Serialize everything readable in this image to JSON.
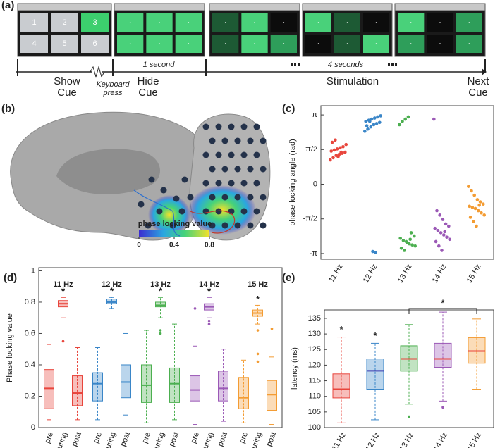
{
  "panel_a": {
    "label": "(a)",
    "screen_numbers": [
      "1",
      "2",
      "3",
      "4",
      "5",
      "6"
    ],
    "durations": [
      "1 second",
      "4 seconds"
    ],
    "phases": [
      "Show Cue",
      "Keyboard press",
      "Hide Cue",
      "Stimulation",
      "Next Cue"
    ]
  },
  "panel_b": {
    "label": "(b)",
    "colorbar": {
      "title": "phase locking value",
      "ticks": [
        0,
        0.4,
        0.8
      ]
    }
  },
  "chart_data": [
    {
      "type": "strip",
      "label": "(c)",
      "y_label": "phase locking angle (rad)",
      "categories": [
        "11 Hz",
        "12 Hz",
        "13 Hz",
        "14 Hz",
        "15 Hz"
      ],
      "colors": [
        "#e8453c",
        "#3a86c8",
        "#4caf50",
        "#9b59b6",
        "#f39c33"
      ],
      "values": [
        [
          1.1,
          1.2,
          1.3,
          1.35,
          1.4,
          1.45,
          1.5,
          1.55,
          1.6,
          1.65,
          1.7,
          1.8,
          1.9,
          2.0,
          1.25,
          1.45
        ],
        [
          2.4,
          2.5,
          2.6,
          2.7,
          2.75,
          2.8,
          2.85,
          2.9,
          2.95,
          3.0,
          3.05,
          3.1,
          2.65,
          2.85,
          -3.05,
          -3.1
        ],
        [
          2.7,
          2.85,
          2.95,
          3.05,
          -2.2,
          -2.35,
          -2.45,
          -2.55,
          -2.6,
          -2.7,
          -2.75,
          -2.8,
          -2.9,
          -3.0,
          -2.65,
          -2.5
        ],
        [
          2.95,
          -1.2,
          -1.4,
          -1.6,
          -1.8,
          -1.9,
          -2.0,
          -2.1,
          -2.2,
          -2.3,
          -2.4,
          -2.5,
          -2.6,
          -2.8,
          -3.0,
          -2.15
        ],
        [
          -0.1,
          -0.3,
          -0.5,
          -0.7,
          -0.8,
          -0.9,
          -1.0,
          -1.05,
          -1.1,
          -1.2,
          -1.3,
          -1.4,
          -1.5,
          -1.7,
          -1.9,
          -0.95
        ]
      ],
      "ylim": [
        -3.4,
        3.56
      ],
      "yticks": [
        {
          "value": 3.14159,
          "label": "π"
        },
        {
          "value": 1.5708,
          "label": "π/2"
        },
        0,
        {
          "value": -1.5708,
          "label": "-π/2"
        },
        {
          "value": -3.14159,
          "label": "-π"
        }
      ]
    },
    {
      "type": "grouped-box",
      "label": "(d)",
      "y_label": "Phase locking value",
      "categories": [
        "pre",
        "during",
        "post"
      ],
      "ylim": [
        0,
        1.02
      ],
      "yticks": [
        0,
        0.2,
        0.4,
        0.6,
        0.8,
        1
      ],
      "series": [
        {
          "name": "11 Hz",
          "color": "#e8453c",
          "star": "*",
          "boxes": [
            {
              "min": 0.05,
              "q1": 0.12,
              "median": 0.25,
              "q3": 0.37,
              "max": 0.53,
              "outliers": []
            },
            {
              "min": 0.7,
              "q1": 0.77,
              "median": 0.79,
              "q3": 0.81,
              "max": 0.83,
              "outliers": [
                0.55
              ]
            },
            {
              "min": 0.05,
              "q1": 0.14,
              "median": 0.22,
              "q3": 0.33,
              "max": 0.51,
              "outliers": []
            }
          ]
        },
        {
          "name": "12 Hz",
          "color": "#3a86c8",
          "star": "*",
          "boxes": [
            {
              "min": 0.05,
              "q1": 0.17,
              "median": 0.28,
              "q3": 0.35,
              "max": 0.51,
              "outliers": []
            },
            {
              "min": 0.76,
              "q1": 0.79,
              "median": 0.8,
              "q3": 0.82,
              "max": 0.83,
              "outliers": []
            },
            {
              "min": 0.08,
              "q1": 0.19,
              "median": 0.29,
              "q3": 0.4,
              "max": 0.6,
              "outliers": []
            }
          ]
        },
        {
          "name": "13 Hz",
          "color": "#4caf50",
          "star": "*",
          "boxes": [
            {
              "min": 0.03,
              "q1": 0.16,
              "median": 0.27,
              "q3": 0.4,
              "max": 0.62,
              "outliers": []
            },
            {
              "min": 0.7,
              "q1": 0.77,
              "median": 0.78,
              "q3": 0.8,
              "max": 0.83,
              "outliers": [
                0.62,
                0.6
              ]
            },
            {
              "min": 0.05,
              "q1": 0.16,
              "median": 0.28,
              "q3": 0.38,
              "max": 0.66,
              "outliers": []
            }
          ]
        },
        {
          "name": "14 Hz",
          "color": "#9b59b6",
          "star": "*",
          "boxes": [
            {
              "min": 0.02,
              "q1": 0.17,
              "median": 0.24,
              "q3": 0.33,
              "max": 0.52,
              "outliers": [
                0.76
              ]
            },
            {
              "min": 0.7,
              "q1": 0.75,
              "median": 0.77,
              "q3": 0.79,
              "max": 0.83,
              "outliers": [
                0.68,
                0.66
              ]
            },
            {
              "min": 0.04,
              "q1": 0.17,
              "median": 0.25,
              "q3": 0.36,
              "max": 0.5,
              "outliers": []
            }
          ]
        },
        {
          "name": "15 Hz",
          "color": "#f39c33",
          "star": "*",
          "boxes": [
            {
              "min": 0.03,
              "q1": 0.12,
              "median": 0.19,
              "q3": 0.32,
              "max": 0.43,
              "outliers": []
            },
            {
              "min": 0.66,
              "q1": 0.71,
              "median": 0.73,
              "q3": 0.75,
              "max": 0.78,
              "outliers": [
                0.62,
                0.47,
                0.42
              ]
            },
            {
              "min": 0.02,
              "q1": 0.11,
              "median": 0.21,
              "q3": 0.3,
              "max": 0.45,
              "outliers": [
                0.63
              ]
            }
          ]
        }
      ]
    },
    {
      "type": "box",
      "label": "(e)",
      "y_label": "latency (ms)",
      "categories": [
        "11 Hz",
        "12 Hz",
        "13 Hz",
        "14 Hz",
        "15 Hz"
      ],
      "colors": [
        "#e8453c",
        "#3a86c8",
        "#4caf50",
        "#9b59b6",
        "#f39c33"
      ],
      "boxes": [
        {
          "min": 101.5,
          "q1": 109.5,
          "median": 112.3,
          "q3": 117.2,
          "max": 129,
          "outliers": []
        },
        {
          "min": 102.5,
          "q1": 112.3,
          "median": 118.2,
          "q3": 122,
          "max": 127,
          "outliers": []
        },
        {
          "min": 107.5,
          "q1": 118.1,
          "median": 122,
          "q3": 126.2,
          "max": 133,
          "outliers": [
            103.5
          ]
        },
        {
          "min": 108.5,
          "q1": 119.3,
          "median": 122,
          "q3": 127,
          "max": 137,
          "outliers": [
            106.5
          ]
        },
        {
          "min": 112.3,
          "q1": 120.6,
          "median": 124.5,
          "q3": 128.8,
          "max": 134.8,
          "outliers": []
        }
      ],
      "annotations": [
        {
          "label": "*",
          "at": "11 Hz"
        },
        {
          "label": "*",
          "at": "12 Hz"
        },
        {
          "label": "*",
          "from": "13 Hz",
          "to": "15 Hz"
        }
      ],
      "ylim": [
        100,
        137.7
      ],
      "yticks": [
        100,
        105,
        110,
        115,
        120,
        125,
        130,
        135
      ]
    }
  ]
}
